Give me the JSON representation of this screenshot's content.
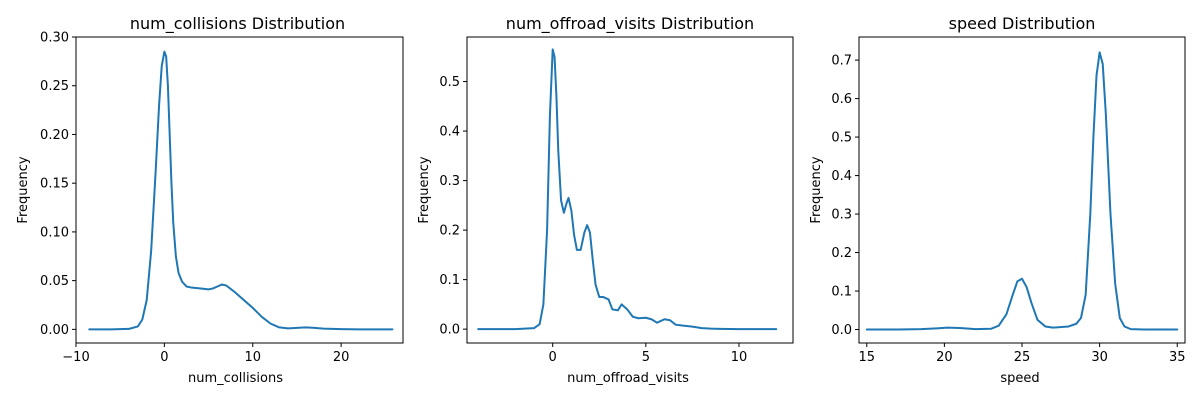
{
  "line_color": "#1f77b4",
  "chart_data": [
    {
      "type": "line",
      "title": "num_collisions  Distribution",
      "xlabel": "num_collisions",
      "ylabel": "Frequency",
      "xlim": [
        -10.0,
        27.0
      ],
      "ylim": [
        -0.014,
        0.3
      ],
      "xticks": [
        -10,
        0,
        10,
        20
      ],
      "xtick_labels": [
        "−10",
        "0",
        "10",
        "20"
      ],
      "yticks": [
        0.0,
        0.05,
        0.1,
        0.15,
        0.2,
        0.25,
        0.3
      ],
      "ytick_labels": [
        "0.00",
        "0.05",
        "0.10",
        "0.15",
        "0.20",
        "0.25",
        "0.30"
      ],
      "grid": false,
      "series": [
        {
          "x": [
            -8.5,
            -6,
            -4,
            -3,
            -2.5,
            -2,
            -1.5,
            -1,
            -0.6,
            -0.3,
            0,
            0.2,
            0.4,
            0.6,
            0.8,
            1,
            1.3,
            1.6,
            2,
            2.5,
            3,
            4,
            5,
            5.5,
            6,
            6.5,
            7,
            8,
            9,
            10,
            11,
            12,
            13,
            14,
            15,
            16,
            17,
            18,
            20,
            22,
            24,
            25.8
          ],
          "y": [
            0.0,
            0.0,
            0.0005,
            0.003,
            0.01,
            0.03,
            0.08,
            0.16,
            0.23,
            0.27,
            0.285,
            0.28,
            0.25,
            0.2,
            0.15,
            0.11,
            0.075,
            0.058,
            0.049,
            0.044,
            0.043,
            0.042,
            0.041,
            0.042,
            0.044,
            0.046,
            0.045,
            0.038,
            0.03,
            0.022,
            0.013,
            0.006,
            0.002,
            0.001,
            0.0015,
            0.002,
            0.0015,
            0.0008,
            0.0002,
            0.0,
            0.0,
            0.0
          ]
        }
      ]
    },
    {
      "type": "line",
      "title": "num_offroad_visits  Distribution",
      "xlabel": "num_offroad_visits",
      "ylabel": "Frequency",
      "xlim": [
        -4.6,
        12.9
      ],
      "ylim": [
        -0.028,
        0.59
      ],
      "xticks": [
        0,
        5,
        10
      ],
      "xtick_labels": [
        "0",
        "5",
        "10"
      ],
      "yticks": [
        0.0,
        0.1,
        0.2,
        0.3,
        0.4,
        0.5
      ],
      "ytick_labels": [
        "0.0",
        "0.1",
        "0.2",
        "0.3",
        "0.4",
        "0.5"
      ],
      "grid": false,
      "series": [
        {
          "x": [
            -4,
            -2,
            -1,
            -0.7,
            -0.5,
            -0.3,
            -0.15,
            0,
            0.1,
            0.2,
            0.3,
            0.45,
            0.6,
            0.75,
            0.85,
            1,
            1.15,
            1.3,
            1.5,
            1.7,
            1.85,
            2,
            2.15,
            2.3,
            2.5,
            2.7,
            3,
            3.2,
            3.5,
            3.7,
            4,
            4.3,
            4.6,
            5,
            5.3,
            5.6,
            6,
            6.3,
            6.6,
            7,
            7.5,
            8,
            8.5,
            9,
            10,
            11,
            12
          ],
          "y": [
            0.0,
            0.0,
            0.002,
            0.01,
            0.05,
            0.2,
            0.43,
            0.565,
            0.55,
            0.47,
            0.36,
            0.26,
            0.235,
            0.255,
            0.265,
            0.24,
            0.19,
            0.16,
            0.16,
            0.195,
            0.21,
            0.195,
            0.14,
            0.09,
            0.065,
            0.065,
            0.06,
            0.04,
            0.038,
            0.05,
            0.04,
            0.025,
            0.022,
            0.023,
            0.02,
            0.013,
            0.02,
            0.018,
            0.009,
            0.007,
            0.005,
            0.002,
            0.001,
            0.0005,
            0.0,
            0.0,
            0.0
          ]
        }
      ]
    },
    {
      "type": "line",
      "title": "speed  Distribution",
      "xlabel": "speed",
      "ylabel": "Frequency",
      "xlim": [
        14.5,
        35.5
      ],
      "ylim": [
        -0.035,
        0.76
      ],
      "xticks": [
        15,
        20,
        25,
        30,
        35
      ],
      "xtick_labels": [
        "15",
        "20",
        "25",
        "30",
        "35"
      ],
      "yticks": [
        0.0,
        0.1,
        0.2,
        0.3,
        0.4,
        0.5,
        0.6,
        0.7
      ],
      "ytick_labels": [
        "0.0",
        "0.1",
        "0.2",
        "0.3",
        "0.4",
        "0.5",
        "0.6",
        "0.7"
      ],
      "grid": false,
      "series": [
        {
          "x": [
            15,
            17,
            18.5,
            19.5,
            20.2,
            21,
            22,
            23,
            23.5,
            24,
            24.4,
            24.7,
            25,
            25.3,
            25.6,
            26,
            26.5,
            27,
            28,
            28.5,
            28.8,
            29.1,
            29.4,
            29.6,
            29.8,
            30,
            30.2,
            30.4,
            30.7,
            31,
            31.3,
            31.6,
            32,
            33,
            35
          ],
          "y": [
            0.0,
            0.0,
            0.001,
            0.003,
            0.005,
            0.004,
            0.001,
            0.002,
            0.01,
            0.04,
            0.09,
            0.125,
            0.132,
            0.11,
            0.07,
            0.025,
            0.008,
            0.005,
            0.008,
            0.015,
            0.03,
            0.09,
            0.3,
            0.5,
            0.66,
            0.72,
            0.69,
            0.56,
            0.3,
            0.12,
            0.03,
            0.008,
            0.001,
            0.0,
            0.0
          ]
        }
      ]
    }
  ]
}
